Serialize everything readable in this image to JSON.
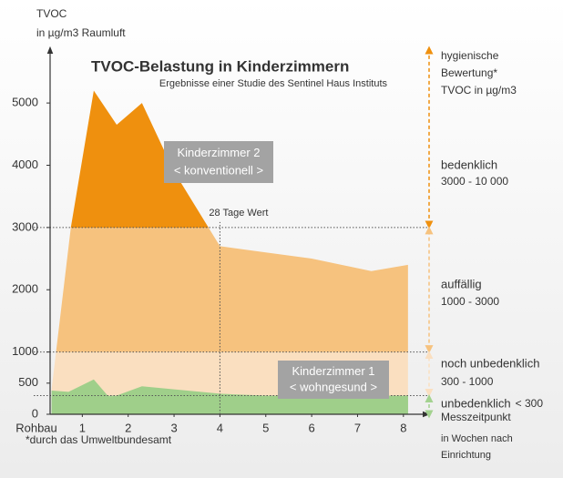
{
  "chart_data": {
    "type": "area",
    "title": "TVOC-Belastung in Kinderzimmern",
    "subtitle": "Ergebnisse einer Studie des Sentinel Haus Instituts",
    "y_label": "TVOC",
    "y_unit": "in µg/m3 Raumluft",
    "x_label": "Messzeitpunkt",
    "x_sublabel": [
      "in Wochen nach",
      "Einrichtung"
    ],
    "footnote": "*durch das Umweltbundesamt",
    "legend_header": [
      "hygienische",
      "Bewertung*",
      "TVOC in µg/m3"
    ],
    "xlim": [
      0,
      8.5
    ],
    "xticks": [
      {
        "value": 0,
        "label": "Rohbau"
      },
      1,
      2,
      3,
      4,
      5,
      6,
      7,
      8
    ],
    "ylim": [
      0,
      5850
    ],
    "yticks": [
      0,
      500,
      1000,
      2000,
      3000,
      4000,
      5000
    ],
    "marker": {
      "x": 4,
      "label": "28 Tage Wert"
    },
    "zones": [
      {
        "name": "bedenklich",
        "range": "3000 - 10 000",
        "from": 3000,
        "to": 10000,
        "color": "#ef900e"
      },
      {
        "name": "auffällig",
        "range": "1000 - 3000",
        "from": 1000,
        "to": 3000,
        "color": "#f6c27e"
      },
      {
        "name": "noch unbedenklich",
        "range": "300 - 1000",
        "from": 300,
        "to": 1000,
        "color": "#fadfc0"
      },
      {
        "name": "unbedenklich",
        "range": "< 300",
        "from": 0,
        "to": 300,
        "color": "#a3d28f"
      }
    ],
    "series": [
      {
        "name": "Kinderzimmer 2",
        "note": "< konventionell >",
        "color": "#e88a08",
        "x": [
          0.33,
          0.75,
          1.25,
          1.75,
          2.3,
          3.0,
          4.0,
          5.0,
          6.0,
          7.3,
          8.1
        ],
        "values": [
          400,
          3000,
          5200,
          4650,
          5000,
          3900,
          2700,
          2600,
          2500,
          2300,
          2400
        ]
      },
      {
        "name": "Kinderzimmer 1",
        "note": "< wohngesund >",
        "color": "#9fcf8a",
        "x": [
          0.33,
          0.7,
          1.25,
          1.6,
          2.3,
          3.0,
          4.0,
          5.0,
          8.1
        ],
        "values": [
          380,
          360,
          560,
          260,
          450,
          400,
          330,
          300,
          300
        ]
      }
    ]
  }
}
